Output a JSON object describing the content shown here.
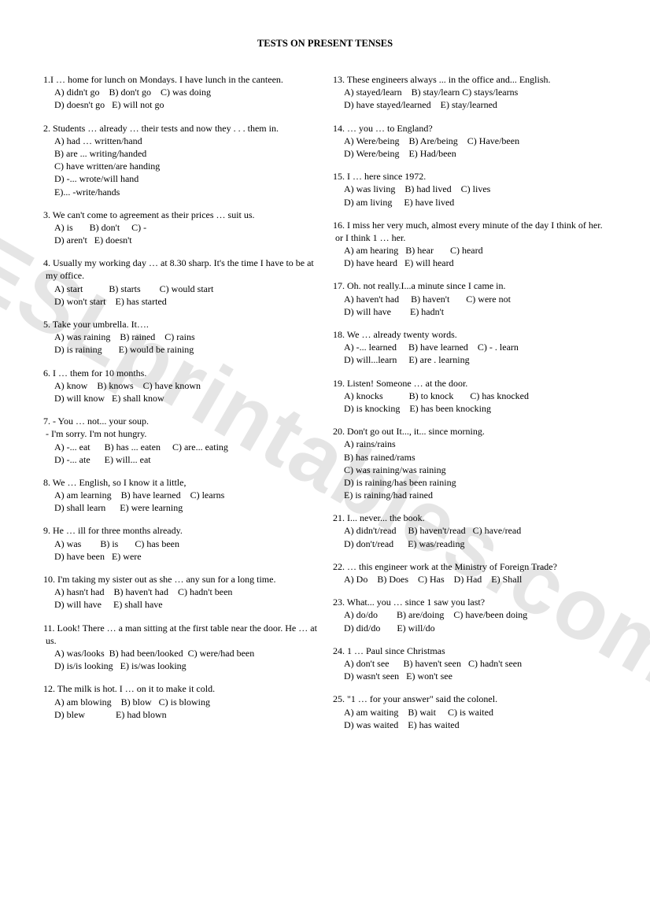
{
  "title": "TESTS ON PRESENT TENSES",
  "watermark_text": "ESLprintables.com",
  "watermark_color": "rgba(0,0,0,0.10)",
  "watermark_fontsize": 110,
  "columns": [
    {
      "questions": [
        {
          "stem": "1.I … home for lunch on Mondays. I have lunch in the canteen.",
          "opts": [
            "A) didn't go    B) don't go    C) was doing",
            "D) doesn't go   E) will not go"
          ]
        },
        {
          "stem": "2. Students     … already … their tests and now they . . . them in.",
          "opts": [
            "A) had … written/hand",
            "B) are ... writing/handed",
            "C) have written/are handing",
            "D) -... wrote/will hand",
            "E)... -write/hands"
          ]
        },
        {
          "stem": "3. We can't come to agreement as their prices … suit us.",
          "opts": [
            "A) is       B) don't     C) -",
            "D) aren't   E) doesn't"
          ]
        },
        {
          "stem": "4. Usually my working day … at 8.30 sharp. It's the time I have to be at my office.",
          "opts": [
            "A) start           B) starts        C) would start",
            "D) won't start    E) has started"
          ]
        },
        {
          "stem": " 5. Take your umbrella. It….",
          "opts": [
            "A) was raining    B) rained    C) rains",
            "D) is raining       E) would be raining"
          ]
        },
        {
          "stem": "6. I … them for 10 months.",
          "opts": [
            "A) know    B) knows    C) have known",
            "D) will know   E) shall know"
          ]
        },
        {
          "stem": "7.   - You … not... your soup.\n-     I'm sorry. I'm not hungry.",
          "opts": [
            "A) -... eat      B) has ... eaten     C) are... eating",
            "D) -... ate      E) will... eat"
          ]
        },
        {
          "stem": "8. We … English, so I know it a little,",
          "opts": [
            "A) am learning    B) have learned    C) learns",
            "D) shall learn      E) were learning"
          ]
        },
        {
          "stem": "9. He … ill for three months already.",
          "opts": [
            "A) was        B) is       C) has been",
            "D) have been   E) were"
          ]
        },
        {
          "stem": "10. I'm taking my sister out as she … any sun for a long time.",
          "opts": [
            "A) hasn't had    B) haven't had    C) hadn't been",
            "D) will have     E) shall have"
          ]
        },
        {
          "stem": "11. Look! There … a man sitting at the first table near the door. He … at us.",
          "opts": [
            "A) was/looks  B) had been/looked  C) were/had been",
            "D) is/is looking   E) is/was looking"
          ]
        },
        {
          "stem": "12. The milk is hot. I … on it to make it cold.",
          "opts": [
            "A) am blowing    B) blow   C) is blowing",
            "D) blew             E) had blown"
          ]
        }
      ]
    },
    {
      "questions": [
        {
          "stem": "13. These engineers always ... in the office and... English.",
          "opts": [
            "A) stayed/learn    B) stay/learn C) stays/learns",
            "D) have stayed/learned    E) stay/learned"
          ]
        },
        {
          "stem": "14.   … you …  to England?",
          "opts": [
            "A) Were/being    B) Are/being    C) Have/been",
            "D) Were/being    E) Had/been"
          ]
        },
        {
          "stem": "15. I  …  here since 1972.",
          "opts": [
            "A) was living    B) had lived    C) lives",
            "D) am living     E) have lived"
          ]
        },
        {
          "stem": "16. I miss her very much, almost every minute of the day I think of her. or I think 1 … her.",
          "opts": [
            "A) am hearing   B) hear       C) heard",
            "D) have heard   E) will heard"
          ]
        },
        {
          "stem": "17. Oh. not really.I...a minute since I came in.",
          "opts": [
            "A) haven't had     B) haven't       C) were not",
            "D) will have        E) hadn't"
          ]
        },
        {
          "stem": "18. We … already twenty words.",
          "opts": [
            "A) -... learned     B) have learned    C) - . learn",
            "D) will...learn     E) are . learning"
          ]
        },
        {
          "stem": "19. Listen! Someone … at the door.",
          "opts": [
            "A) knocks           B) to knock       C) has knocked",
            "D) is knocking    E) has been knocking"
          ]
        },
        {
          "stem": "20. Don't go out It..., it... since morning.",
          "opts": [
            "A) rains/rains",
            "B) has rained/rams",
            "C) was raining/was raining",
            "D) is raining/has been raining",
            "E) is raining/had rained"
          ]
        },
        {
          "stem": "21. I... never... the book.",
          "opts": [
            "A) didn't/read     B) haven't/read   C) have/read",
            "D) don't/read      E) was/reading"
          ]
        },
        {
          "stem": "22. …  this engineer work at the Ministry of Foreign Trade?",
          "opts": [
            "A) Do    B) Does    C) Has    D) Had    E) Shall"
          ]
        },
        {
          "stem": " 23. What... you … since 1 saw you last?",
          "opts": [
            "A) do/do        B) are/doing    C) have/been doing",
            "D) did/do       E) will/do"
          ]
        },
        {
          "stem": "24. 1 …  Paul since Christmas",
          "opts": [
            "A) don't see      B) haven't seen   C) hadn't seen",
            "D) wasn't seen   E) won't see",
            ""
          ]
        },
        {
          "stem": " 25. \"1 …  for your answer\" said the colonel.",
          "opts": [
            "A) am waiting    B) wait     C) is waited",
            "D) was waited    E) has waited"
          ]
        }
      ]
    }
  ]
}
